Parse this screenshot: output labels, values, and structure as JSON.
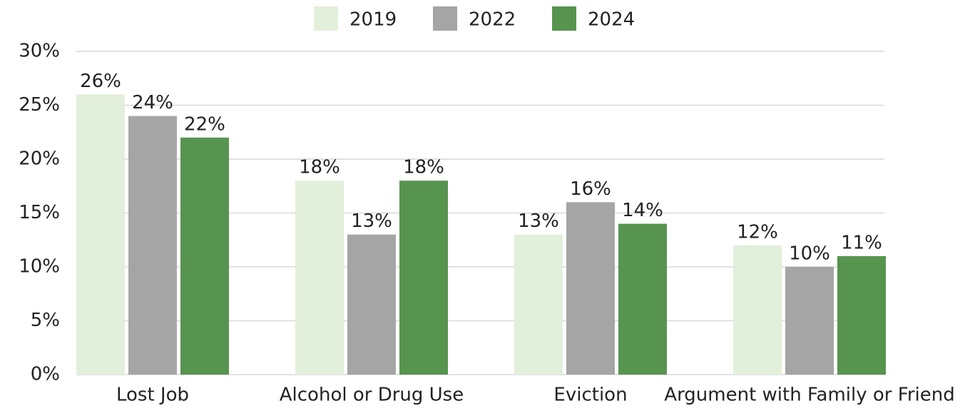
{
  "chart_data": {
    "type": "bar",
    "categories": [
      "Lost Job",
      "Alcohol or Drug Use",
      "Eviction",
      "Argument with Family or Friend"
    ],
    "series": [
      {
        "name": "2019",
        "color": "#e2efda",
        "values": [
          26,
          18,
          13,
          12
        ],
        "value_labels": [
          "26%",
          "18%",
          "13%",
          "12%"
        ]
      },
      {
        "name": "2022",
        "color": "#a5a5a5",
        "values": [
          24,
          13,
          16,
          10
        ],
        "value_labels": [
          "24%",
          "13%",
          "16%",
          "10%"
        ]
      },
      {
        "name": "2024",
        "color": "#57944f",
        "values": [
          22,
          18,
          14,
          11
        ],
        "value_labels": [
          "22%",
          "18%",
          "14%",
          "11%"
        ]
      }
    ],
    "ylim": [
      0,
      30
    ],
    "yticks": [
      {
        "value": 0,
        "label": "0%"
      },
      {
        "value": 5,
        "label": "5%"
      },
      {
        "value": 10,
        "label": "10%"
      },
      {
        "value": 15,
        "label": "15%"
      },
      {
        "value": 20,
        "label": "20%"
      },
      {
        "value": 25,
        "label": "25%"
      },
      {
        "value": 30,
        "label": "30%"
      }
    ],
    "grid": true,
    "legend": "top"
  }
}
